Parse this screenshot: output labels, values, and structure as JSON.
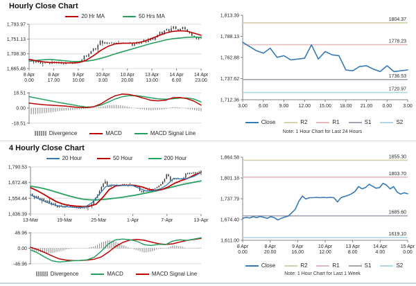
{
  "sections": [
    {
      "title": "Hourly Close Chart"
    },
    {
      "title": "4 Hourly Close Chart"
    }
  ],
  "colors": {
    "ma_red": "#C00000",
    "ma_green": "#26A05F",
    "close_blue": "#3679B5",
    "divergence_gray": "#8F8F8F",
    "r2_tan": "#D5D1A8",
    "r1_rose": "#E6B9B8",
    "s1_gray": "#A3A3B4",
    "s2_lightblue": "#AFD6E4",
    "candle": "#2F2F2F",
    "grid": "#DCDCDC"
  },
  "chart_data": [
    {
      "id": "hourly-price",
      "type": "candlestick",
      "ylim": [
        1665.46,
        1793.97
      ],
      "yticks": [
        1793.97,
        1751.13,
        1708.3,
        1665.46
      ],
      "ytick_labels": [
        "1,793.97",
        "1,751.13",
        "1,708.30",
        "1,665.46"
      ],
      "xlabels": [
        [
          "8 Apr",
          "0.00"
        ],
        [
          "8 Apr",
          "17.00"
        ],
        [
          "9 Apr",
          "10.00"
        ],
        [
          "10 Apr",
          "3.00"
        ],
        [
          "10 Apr",
          "20.00"
        ],
        [
          "13 Apr",
          "13.00"
        ],
        [
          "14 Apr",
          "6.00"
        ],
        [
          "14 Apr",
          "23.00"
        ]
      ],
      "wick_amp": 3,
      "candles_close": [
        1691,
        1687,
        1684,
        1689,
        1684,
        1680,
        1682,
        1685,
        1683,
        1680,
        1682,
        1684,
        1681,
        1683,
        1680,
        1679,
        1682,
        1681,
        1683,
        1680,
        1681,
        1683,
        1686,
        1692,
        1703,
        1700,
        1708,
        1716,
        1724,
        1721,
        1734,
        1746,
        1738,
        1742,
        1738,
        1740,
        1739,
        1738,
        1740,
        1738,
        1739,
        1738,
        1739,
        1740,
        1738,
        1732,
        1737,
        1742,
        1738,
        1744,
        1748,
        1742,
        1747,
        1753,
        1749,
        1756,
        1763,
        1772,
        1765,
        1776,
        1780,
        1773,
        1782,
        1788,
        1780,
        1774,
        1780,
        1786,
        1779,
        1772,
        1768,
        1760,
        1756,
        1752,
        1757,
        1753
      ],
      "series": [
        {
          "name": "50 Hrs MA",
          "color": "#26A05F",
          "width": 1.6,
          "values": [
            1687,
            1689,
            1691,
            1692,
            1690,
            1688,
            1686,
            1686,
            1687,
            1690,
            1695,
            1701,
            1708,
            1714,
            1720,
            1726,
            1732,
            1738,
            1743,
            1748,
            1752,
            1754,
            1756,
            1757,
            1756
          ]
        },
        {
          "name": "20 Hr MA",
          "color": "#C00000",
          "width": 1.6,
          "values": [
            1692,
            1688,
            1685,
            1683,
            1683,
            1682,
            1682,
            1683,
            1690,
            1703,
            1718,
            1730,
            1737,
            1739,
            1739,
            1740,
            1744,
            1752,
            1760,
            1768,
            1773,
            1775,
            1774,
            1768,
            1762
          ]
        }
      ],
      "legend": [
        {
          "label": "20 Hr MA",
          "color": "#C00000",
          "type": "line"
        },
        {
          "label": "50 Hrs MA",
          "color": "#26A05F",
          "type": "line"
        }
      ]
    },
    {
      "id": "hourly-macd",
      "type": "macd",
      "ylim": [
        -19.5,
        19.5
      ],
      "yticks": [
        18.51,
        0,
        -18.51
      ],
      "ytick_labels": [
        "18.51",
        "0.00",
        "-18.51"
      ],
      "bar_count": 80,
      "macd_color": "#C00000",
      "signal_color": "#26A05F",
      "bar_color": "#8F8F8F",
      "macd": [
        6,
        5,
        4,
        3.5,
        3,
        2.5,
        1.5,
        0.8,
        0.5,
        1.5,
        5,
        10.5,
        15,
        17,
        16.5,
        14.5,
        12,
        9.5,
        8.8,
        9.5,
        12.5,
        13,
        11.5,
        8.5,
        3.5
      ],
      "signal": [
        14,
        12.2,
        10.5,
        8.8,
        7,
        5.5,
        4,
        2.5,
        1.2,
        1.5,
        3.5,
        7,
        11,
        13.8,
        15.3,
        15.2,
        14,
        12.5,
        11.2,
        10.8,
        11.3,
        12.2,
        12.3,
        11,
        7.5
      ],
      "legend": [
        {
          "label": "Divergence",
          "color": "#8F8F8F",
          "type": "bars"
        },
        {
          "label": "MACD",
          "color": "#C00000",
          "type": "line"
        },
        {
          "label": "MACD Signal Line",
          "color": "#26A05F",
          "type": "line"
        }
      ]
    },
    {
      "id": "hourly-pivot",
      "type": "line",
      "ylim": [
        1712.36,
        1813.39
      ],
      "yticks": [
        1813.39,
        1788.13,
        1762.88,
        1737.62,
        1712.36
      ],
      "ytick_labels": [
        "1,813.39",
        "1,788.13",
        "1,762.88",
        "1,737.62",
        "1,712.36"
      ],
      "xlabels": [
        "3.00",
        "6.00",
        "9.00",
        "12.00",
        "15.00",
        "18.00",
        "21.00",
        "0.00",
        "3.00"
      ],
      "series": [
        {
          "name": "Close",
          "color": "#3679B5",
          "width": 1.6,
          "values": [
            1781,
            1776,
            1771,
            1768,
            1774,
            1763,
            1765,
            1760,
            1761,
            1762,
            1778,
            1761,
            1770,
            1766,
            1765,
            1748,
            1747,
            1752,
            1753,
            1749,
            1746,
            1753,
            1746,
            1747,
            1748
          ]
        }
      ],
      "levels": [
        {
          "name": "R2",
          "value": 1804.37,
          "label": "1804.37",
          "color": "#D5D1A8"
        },
        {
          "name": "R1",
          "value": 1778.23,
          "label": "1778.23",
          "color": "#E6B9B8"
        },
        {
          "name": "S1",
          "value": 1736.53,
          "label": "1736.53",
          "color": "#A3A3B4"
        },
        {
          "name": "S2",
          "value": 1720.97,
          "label": "1720.97",
          "color": "#AFD6E4"
        }
      ],
      "legend": [
        {
          "label": "Close",
          "color": "#3679B5",
          "type": "line"
        },
        {
          "label": "R2",
          "color": "#D5D1A8",
          "type": "line"
        },
        {
          "label": "R1",
          "color": "#E6B9B8",
          "type": "line"
        },
        {
          "label": "S1",
          "color": "#A3A3B4",
          "type": "line"
        },
        {
          "label": "S2",
          "color": "#AFD6E4",
          "type": "line"
        }
      ],
      "note": "Note: 1 Hour Chart for Last 24 Hours"
    },
    {
      "id": "fourhourly-price",
      "type": "candlestick",
      "ylim": [
        1436.39,
        1790.53
      ],
      "yticks": [
        1790.53,
        1672.48,
        1554.44,
        1436.39
      ],
      "ytick_labels": [
        "1,790.53",
        "1,672.48",
        "1,554.44",
        "1,436.39"
      ],
      "xlabels": [
        "13-Mar",
        "19-Mar",
        "25-Mar",
        "1-Apr",
        "7-Apr",
        "13-Apr"
      ],
      "wick_amp": 8,
      "candles_close": [
        1585,
        1575,
        1560,
        1570,
        1555,
        1540,
        1552,
        1538,
        1525,
        1535,
        1520,
        1505,
        1515,
        1498,
        1488,
        1500,
        1492,
        1485,
        1495,
        1505,
        1498,
        1490,
        1498,
        1492,
        1485,
        1478,
        1488,
        1480,
        1490,
        1485,
        1492,
        1498,
        1510,
        1540,
        1560,
        1580,
        1610,
        1640,
        1665,
        1680,
        1650,
        1640,
        1655,
        1648,
        1652,
        1655,
        1648,
        1655,
        1660,
        1652,
        1655,
        1648,
        1652,
        1656,
        1650,
        1645,
        1640,
        1610,
        1600,
        1612,
        1608,
        1615,
        1610,
        1618,
        1625,
        1630,
        1638,
        1650,
        1660,
        1680,
        1700,
        1735,
        1720,
        1690,
        1698,
        1700,
        1705,
        1698,
        1702,
        1705,
        1710,
        1740,
        1745,
        1740,
        1745,
        1742,
        1748,
        1745,
        1750,
        1758
      ],
      "series": [
        {
          "name": "200 Hour",
          "color": "#26A05F",
          "width": 1.8,
          "values": [
            1645,
            1638,
            1628,
            1615,
            1600,
            1585,
            1570,
            1558,
            1548,
            1543,
            1542,
            1545,
            1550,
            1556,
            1562,
            1570,
            1578,
            1588,
            1598,
            1608,
            1620,
            1632,
            1644,
            1656,
            1666,
            1676,
            1685
          ]
        },
        {
          "name": "50 Hour",
          "color": "#C00000",
          "width": 1.8,
          "values": [
            1635,
            1612,
            1585,
            1555,
            1528,
            1510,
            1500,
            1495,
            1492,
            1495,
            1510,
            1560,
            1620,
            1648,
            1652,
            1653,
            1650,
            1640,
            1622,
            1615,
            1620,
            1640,
            1668,
            1688,
            1705,
            1730,
            1748
          ]
        },
        {
          "name": "20 Hour",
          "color": "#3679B5",
          "width": 1.3,
          "values": [
            1580,
            1555,
            1532,
            1512,
            1498,
            1492,
            1488,
            1484,
            1490,
            1520,
            1580,
            1640,
            1655,
            1650,
            1652,
            1650,
            1628,
            1608,
            1612,
            1625,
            1655,
            1705,
            1700,
            1703,
            1720,
            1748
          ]
        }
      ],
      "legend": [
        {
          "label": "20 Hour",
          "color": "#3679B5",
          "type": "line"
        },
        {
          "label": "50 Hour",
          "color": "#C00000",
          "type": "line"
        },
        {
          "label": "200 Hour",
          "color": "#26A05F",
          "type": "line"
        }
      ]
    },
    {
      "id": "fourhourly-macd",
      "type": "macd",
      "ylim": [
        -49.5,
        49.5
      ],
      "yticks": [
        46.96,
        0,
        -46.96
      ],
      "ytick_labels": [
        "46.96",
        "0.00",
        "-46.96"
      ],
      "bar_count": 85,
      "macd_color": "#26A05F",
      "signal_color": "#C00000",
      "bar_color": "#8F8F8F",
      "macd": [
        -5,
        -14,
        -27,
        -38,
        -42,
        -40,
        -38,
        -37,
        -35,
        -27,
        -8,
        14,
        26,
        28,
        26,
        21,
        11,
        8.5,
        12,
        11,
        22,
        26,
        24,
        28,
        32
      ],
      "signal": [
        3,
        -4,
        -13,
        -23,
        -32,
        -36,
        -37.5,
        -37,
        -36,
        -33,
        -26,
        -11,
        6,
        18,
        25,
        27,
        24.5,
        19,
        14,
        11.5,
        13.5,
        19,
        23.5,
        27,
        30
      ],
      "legend": [
        {
          "label": "Divergence",
          "color": "#8F8F8F",
          "type": "bars"
        },
        {
          "label": "MACD",
          "color": "#26A05F",
          "type": "line"
        },
        {
          "label": "MACD Signal Line",
          "color": "#C00000",
          "type": "line"
        }
      ]
    },
    {
      "id": "weekly-pivot",
      "type": "line",
      "ylim": [
        1611.0,
        1864.58
      ],
      "yticks": [
        1864.58,
        1801.18,
        1737.79,
        1674.4,
        1611.0
      ],
      "ytick_labels": [
        "1,864.58",
        "1,801.18",
        "1,737.79",
        "1,674.40",
        "1,611.00"
      ],
      "xlabels": [
        [
          "8 Apr",
          "0.00"
        ],
        [
          "8 Apr",
          "20.00"
        ],
        [
          "9 Apr",
          "16.00"
        ],
        [
          "10 Apr",
          "12.00"
        ],
        [
          "13 Apr",
          "8.00"
        ],
        [
          "14 Apr",
          "4.00"
        ],
        [
          "15 Apr",
          "0.00"
        ]
      ],
      "series": [
        {
          "name": "Close",
          "color": "#3679B5",
          "width": 1.6,
          "values": [
            1678,
            1681,
            1679,
            1683,
            1680,
            1684,
            1681,
            1678,
            1683,
            1680,
            1673,
            1678,
            1682,
            1685,
            1695,
            1706,
            1730,
            1746,
            1737,
            1741,
            1741,
            1742,
            1741,
            1742,
            1741,
            1742,
            1741,
            1728,
            1741,
            1745,
            1748,
            1753,
            1760,
            1775,
            1768,
            1772,
            1782,
            1776,
            1770,
            1772,
            1785,
            1779,
            1768,
            1775,
            1758,
            1752,
            1756,
            1753
          ]
        }
      ],
      "levels": [
        {
          "name": "R2",
          "value": 1855.3,
          "label": "1855.30",
          "color": "#D5D1A8"
        },
        {
          "name": "R1",
          "value": 1803.7,
          "label": "1803.70",
          "color": "#E6B9B8"
        },
        {
          "name": "S1",
          "value": 1685.6,
          "label": "1685.60",
          "color": "#A3A3B4"
        },
        {
          "name": "S2",
          "value": 1619.1,
          "label": "1619.10",
          "color": "#AFD6E4"
        }
      ],
      "legend": [
        {
          "label": "Close",
          "color": "#3679B5",
          "type": "line"
        },
        {
          "label": "R2",
          "color": "#D5D1A8",
          "type": "line"
        },
        {
          "label": "R1",
          "color": "#E6B9B8",
          "type": "line"
        },
        {
          "label": "S1",
          "color": "#A3A3B4",
          "type": "line"
        },
        {
          "label": "S2",
          "color": "#AFD6E4",
          "type": "line"
        }
      ],
      "note": "Note: 1 Hour Chart for Last 1 Week"
    }
  ]
}
